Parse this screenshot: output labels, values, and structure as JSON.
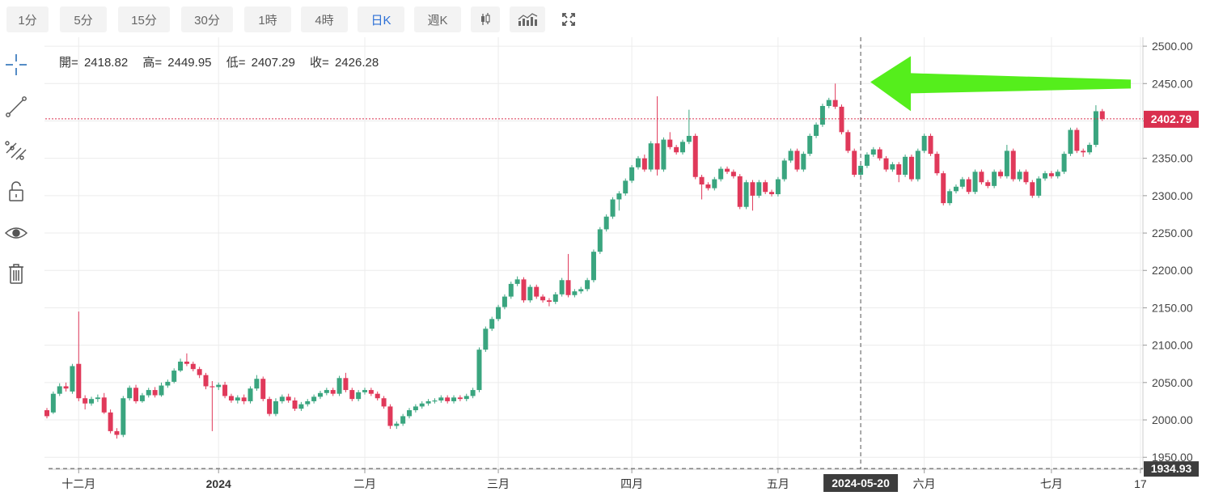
{
  "toolbar": {
    "buttons": [
      "1分",
      "5分",
      "15分",
      "30分",
      "1時",
      "4時",
      "日K",
      "週K"
    ],
    "active": "日K",
    "icons": [
      "candlestick-style-icon",
      "indicator-icon",
      "fullscreen-icon"
    ]
  },
  "side_tools": [
    "crosshair-icon",
    "trend-line-icon",
    "fib-tools-icon",
    "unlock-icon",
    "eye-icon",
    "trash-icon"
  ],
  "ohlc": {
    "open_label": "開=",
    "open": "2418.82",
    "high_label": "高=",
    "high": "2449.95",
    "low_label": "低=",
    "low": "2407.29",
    "close_label": "收=",
    "close": "2426.28"
  },
  "colors": {
    "up": "#3aa57f",
    "down": "#e0395a",
    "arrow": "#55ee1c",
    "price_line": "#d9304f"
  },
  "chart_data": {
    "type": "candlestick",
    "y_ticks": [
      "2500.00",
      "2450.00",
      "2400.00",
      "2350.00",
      "2300.00",
      "2250.00",
      "2200.00",
      "2150.00",
      "2100.00",
      "2050.00",
      "2000.00",
      "1950.00"
    ],
    "ylim": [
      1934,
      2512
    ],
    "x_ticks": [
      {
        "label": "十二月",
        "index": 5
      },
      {
        "label": "2024",
        "index": 27
      },
      {
        "label": "二月",
        "index": 50
      },
      {
        "label": "三月",
        "index": 71
      },
      {
        "label": "四月",
        "index": 92
      },
      {
        "label": "五月",
        "index": 115
      },
      {
        "label": "六月",
        "index": 138
      },
      {
        "label": "七月",
        "index": 158
      },
      {
        "label": "17",
        "index": 172
      }
    ],
    "crosshair_index": 128,
    "crosshair_date": "2024-05-20",
    "current_price": "2402.79",
    "current_price_value": 2402.79,
    "low_line_value": 1934.93,
    "low_line_label": "1934.93",
    "grid": true,
    "candles": [
      [
        2013.0,
        2005.0,
        2016.0,
        2002.0
      ],
      [
        2010.0,
        2035.0,
        2038.0,
        2008.0
      ],
      [
        2035.0,
        2045.0,
        2049.0,
        2032.0
      ],
      [
        2045.0,
        2042.0,
        2050.0,
        2038.0
      ],
      [
        2038.0,
        2072.0,
        2075.0,
        2035.0
      ],
      [
        2075.0,
        2029.0,
        2145.0,
        2025.0
      ],
      [
        2029.0,
        2022.0,
        2033.0,
        2014.0
      ],
      [
        2022.0,
        2028.0,
        2031.0,
        2019.0
      ],
      [
        2028.0,
        2030.0,
        2034.0,
        2024.0
      ],
      [
        2030.0,
        2010.0,
        2036.0,
        2008.0
      ],
      [
        2010.0,
        1985.0,
        2014.0,
        1982.0
      ],
      [
        1985.0,
        1980.0,
        1989.0,
        1975.0
      ],
      [
        1980.0,
        2029.0,
        2032.0,
        1977.0
      ],
      [
        2029.0,
        2043.0,
        2046.0,
        2026.0
      ],
      [
        2043.0,
        2025.0,
        2047.0,
        2022.0
      ],
      [
        2025.0,
        2033.0,
        2036.0,
        2023.0
      ],
      [
        2033.0,
        2040.0,
        2043.0,
        2030.0
      ],
      [
        2040.0,
        2033.0,
        2044.0,
        2030.0
      ],
      [
        2033.0,
        2046.0,
        2050.0,
        2031.0
      ],
      [
        2046.0,
        2051.0,
        2054.0,
        2043.0
      ],
      [
        2051.0,
        2066.0,
        2069.0,
        2049.0
      ],
      [
        2066.0,
        2078.0,
        2082.0,
        2064.0
      ],
      [
        2078.0,
        2075.0,
        2089.0,
        2072.0
      ],
      [
        2075.0,
        2068.0,
        2078.0,
        2065.0
      ],
      [
        2068.0,
        2060.0,
        2071.0,
        2056.0
      ],
      [
        2060.0,
        2045.0,
        2063.0,
        2041.0
      ],
      [
        2045.0,
        2044.0,
        2052.0,
        1985.0
      ],
      [
        2044.0,
        2047.0,
        2050.0,
        2040.0
      ],
      [
        2047.0,
        2032.0,
        2051.0,
        2029.0
      ],
      [
        2032.0,
        2026.0,
        2035.0,
        2023.0
      ],
      [
        2026.0,
        2030.0,
        2033.0,
        2022.0
      ],
      [
        2030.0,
        2025.0,
        2034.0,
        2021.0
      ],
      [
        2025.0,
        2042.0,
        2045.0,
        2022.0
      ],
      [
        2042.0,
        2055.0,
        2060.0,
        2039.0
      ],
      [
        2055.0,
        2028.0,
        2058.0,
        2025.0
      ],
      [
        2028.0,
        2008.0,
        2031.0,
        2005.0
      ],
      [
        2008.0,
        2025.0,
        2029.0,
        2005.0
      ],
      [
        2025.0,
        2031.0,
        2034.0,
        2022.0
      ],
      [
        2031.0,
        2026.0,
        2035.0,
        2023.0
      ],
      [
        2026.0,
        2015.0,
        2030.0,
        2012.0
      ],
      [
        2015.0,
        2021.0,
        2024.0,
        2012.0
      ],
      [
        2021.0,
        2025.0,
        2028.0,
        2018.0
      ],
      [
        2025.0,
        2031.0,
        2034.0,
        2022.0
      ],
      [
        2031.0,
        2036.0,
        2039.0,
        2028.0
      ],
      [
        2036.0,
        2040.0,
        2043.0,
        2033.0
      ],
      [
        2040.0,
        2035.0,
        2043.0,
        2032.0
      ],
      [
        2035.0,
        2056.0,
        2059.0,
        2032.0
      ],
      [
        2056.0,
        2040.0,
        2063.0,
        2037.0
      ],
      [
        2040.0,
        2028.0,
        2043.0,
        2025.0
      ],
      [
        2028.0,
        2037.0,
        2040.0,
        2025.0
      ],
      [
        2037.0,
        2040.0,
        2043.0,
        2034.0
      ],
      [
        2040.0,
        2035.0,
        2043.0,
        2032.0
      ],
      [
        2035.0,
        2029.0,
        2038.0,
        2026.0
      ],
      [
        2029.0,
        2018.0,
        2032.0,
        2015.0
      ],
      [
        2018.0,
        1992.0,
        2021.0,
        1988.0
      ],
      [
        1992.0,
        1995.0,
        1998.0,
        1988.0
      ],
      [
        1995.0,
        2005.0,
        2008.0,
        1992.0
      ],
      [
        2005.0,
        2013.0,
        2016.0,
        2002.0
      ],
      [
        2013.0,
        2018.0,
        2021.0,
        2010.0
      ],
      [
        2018.0,
        2022.0,
        2025.0,
        2015.0
      ],
      [
        2022.0,
        2025.0,
        2028.0,
        2019.0
      ],
      [
        2025.0,
        2026.0,
        2029.0,
        2022.0
      ],
      [
        2026.0,
        2030.0,
        2033.0,
        2023.0
      ],
      [
        2030.0,
        2025.0,
        2033.0,
        2022.0
      ],
      [
        2025.0,
        2030.0,
        2033.0,
        2022.0
      ],
      [
        2030.0,
        2028.0,
        2033.0,
        2025.0
      ],
      [
        2028.0,
        2032.0,
        2035.0,
        2025.0
      ],
      [
        2032.0,
        2040.0,
        2043.0,
        2029.0
      ],
      [
        2040.0,
        2094.0,
        2097.0,
        2037.0
      ],
      [
        2094.0,
        2122.0,
        2125.0,
        2091.0
      ],
      [
        2122.0,
        2135.0,
        2138.0,
        2119.0
      ],
      [
        2135.0,
        2151.0,
        2154.0,
        2132.0
      ],
      [
        2151.0,
        2165.0,
        2168.0,
        2148.0
      ],
      [
        2165.0,
        2182.0,
        2185.0,
        2162.0
      ],
      [
        2182.0,
        2188.0,
        2192.0,
        2179.0
      ],
      [
        2188.0,
        2160.0,
        2191.0,
        2157.0
      ],
      [
        2160.0,
        2178.0,
        2181.0,
        2157.0
      ],
      [
        2178.0,
        2165.0,
        2181.0,
        2162.0
      ],
      [
        2165.0,
        2160.0,
        2168.0,
        2157.0
      ],
      [
        2160.0,
        2158.0,
        2163.0,
        2152.0
      ],
      [
        2158.0,
        2168.0,
        2171.0,
        2155.0
      ],
      [
        2168.0,
        2187.0,
        2190.0,
        2165.0
      ],
      [
        2187.0,
        2167.0,
        2222.0,
        2164.0
      ],
      [
        2167.0,
        2172.0,
        2175.0,
        2164.0
      ],
      [
        2172.0,
        2175.0,
        2178.0,
        2169.0
      ],
      [
        2175.0,
        2187.0,
        2190.0,
        2172.0
      ],
      [
        2187.0,
        2225.0,
        2228.0,
        2184.0
      ],
      [
        2225.0,
        2255.0,
        2258.0,
        2222.0
      ],
      [
        2255.0,
        2272.0,
        2275.0,
        2252.0
      ],
      [
        2272.0,
        2295.0,
        2298.0,
        2269.0
      ],
      [
        2295.0,
        2303.0,
        2306.0,
        2280.0
      ],
      [
        2303.0,
        2320.0,
        2323.0,
        2300.0
      ],
      [
        2320.0,
        2338.0,
        2341.0,
        2317.0
      ],
      [
        2338.0,
        2350.0,
        2353.0,
        2335.0
      ],
      [
        2350.0,
        2335.0,
        2355.0,
        2332.0
      ],
      [
        2335.0,
        2370.0,
        2373.0,
        2332.0
      ],
      [
        2370.0,
        2335.0,
        2433.0,
        2327.0
      ],
      [
        2335.0,
        2375.0,
        2378.0,
        2332.0
      ],
      [
        2375.0,
        2365.0,
        2385.0,
        2362.0
      ],
      [
        2365.0,
        2358.0,
        2368.0,
        2355.0
      ],
      [
        2358.0,
        2372.0,
        2375.0,
        2355.0
      ],
      [
        2372.0,
        2380.0,
        2415.0,
        2369.0
      ],
      [
        2380.0,
        2325.0,
        2383.0,
        2322.0
      ],
      [
        2325.0,
        2315.0,
        2328.0,
        2295.0
      ],
      [
        2315.0,
        2310.0,
        2318.0,
        2307.0
      ],
      [
        2310.0,
        2322.0,
        2325.0,
        2307.0
      ],
      [
        2322.0,
        2336.0,
        2339.0,
        2319.0
      ],
      [
        2336.0,
        2332.0,
        2339.0,
        2329.0
      ],
      [
        2332.0,
        2326.0,
        2335.0,
        2323.0
      ],
      [
        2326.0,
        2285.0,
        2329.0,
        2282.0
      ],
      [
        2285.0,
        2318.0,
        2321.0,
        2282.0
      ],
      [
        2318.0,
        2300.0,
        2321.0,
        2280.0
      ],
      [
        2300.0,
        2318.0,
        2321.0,
        2297.0
      ],
      [
        2318.0,
        2305.0,
        2321.0,
        2302.0
      ],
      [
        2305.0,
        2302.0,
        2308.0,
        2299.0
      ],
      [
        2302.0,
        2322.0,
        2325.0,
        2299.0
      ],
      [
        2322.0,
        2347.0,
        2350.0,
        2319.0
      ],
      [
        2347.0,
        2360.0,
        2363.0,
        2344.0
      ],
      [
        2360.0,
        2335.0,
        2363.0,
        2332.0
      ],
      [
        2335.0,
        2356.0,
        2359.0,
        2332.0
      ],
      [
        2356.0,
        2380.0,
        2383.0,
        2353.0
      ],
      [
        2380.0,
        2395.0,
        2398.0,
        2377.0
      ],
      [
        2395.0,
        2420.0,
        2423.0,
        2392.0
      ],
      [
        2420.0,
        2428.0,
        2431.0,
        2417.0
      ],
      [
        2428.0,
        2419.0,
        2450.0,
        2416.0
      ],
      [
        2419.0,
        2385.0,
        2422.0,
        2382.0
      ],
      [
        2385.0,
        2360.0,
        2388.0,
        2357.0
      ],
      [
        2360.0,
        2328.0,
        2363.0,
        2325.0
      ],
      [
        2328.0,
        2340.0,
        2343.0,
        2325.0
      ],
      [
        2340.0,
        2355.0,
        2358.0,
        2337.0
      ],
      [
        2355.0,
        2362.0,
        2365.0,
        2352.0
      ],
      [
        2362.0,
        2350.0,
        2365.0,
        2347.0
      ],
      [
        2350.0,
        2335.0,
        2353.0,
        2332.0
      ],
      [
        2335.0,
        2342.0,
        2345.0,
        2332.0
      ],
      [
        2342.0,
        2328.0,
        2345.0,
        2318.0
      ],
      [
        2328.0,
        2352.0,
        2355.0,
        2325.0
      ],
      [
        2352.0,
        2322.0,
        2355.0,
        2319.0
      ],
      [
        2322.0,
        2360.0,
        2363.0,
        2319.0
      ],
      [
        2360.0,
        2380.0,
        2383.0,
        2357.0
      ],
      [
        2380.0,
        2356.0,
        2383.0,
        2353.0
      ],
      [
        2356.0,
        2330.0,
        2359.0,
        2327.0
      ],
      [
        2330.0,
        2290.0,
        2333.0,
        2287.0
      ],
      [
        2290.0,
        2306.0,
        2309.0,
        2287.0
      ],
      [
        2306.0,
        2312.0,
        2315.0,
        2303.0
      ],
      [
        2312.0,
        2322.0,
        2325.0,
        2309.0
      ],
      [
        2322.0,
        2305.0,
        2325.0,
        2302.0
      ],
      [
        2305.0,
        2332.0,
        2335.0,
        2302.0
      ],
      [
        2332.0,
        2318.0,
        2335.0,
        2315.0
      ],
      [
        2318.0,
        2313.0,
        2321.0,
        2310.0
      ],
      [
        2313.0,
        2332.0,
        2335.0,
        2310.0
      ],
      [
        2332.0,
        2326.0,
        2335.0,
        2323.0
      ],
      [
        2326.0,
        2360.0,
        2368.0,
        2323.0
      ],
      [
        2360.0,
        2322.0,
        2363.0,
        2319.0
      ],
      [
        2322.0,
        2332.0,
        2335.0,
        2319.0
      ],
      [
        2332.0,
        2318.0,
        2335.0,
        2315.0
      ],
      [
        2318.0,
        2300.0,
        2321.0,
        2297.0
      ],
      [
        2300.0,
        2323.0,
        2326.0,
        2297.0
      ],
      [
        2323.0,
        2330.0,
        2333.0,
        2320.0
      ],
      [
        2330.0,
        2326.0,
        2333.0,
        2323.0
      ],
      [
        2326.0,
        2332.0,
        2335.0,
        2323.0
      ],
      [
        2332.0,
        2356.0,
        2359.0,
        2329.0
      ],
      [
        2356.0,
        2388.0,
        2391.0,
        2353.0
      ],
      [
        2388.0,
        2360.0,
        2391.0,
        2357.0
      ],
      [
        2360.0,
        2358.0,
        2363.0,
        2352.0
      ],
      [
        2358.0,
        2368.0,
        2371.0,
        2355.0
      ],
      [
        2368.0,
        2413.0,
        2421.0,
        2365.0
      ],
      [
        2413.0,
        2402.79,
        2416.0,
        2400.0
      ]
    ]
  }
}
